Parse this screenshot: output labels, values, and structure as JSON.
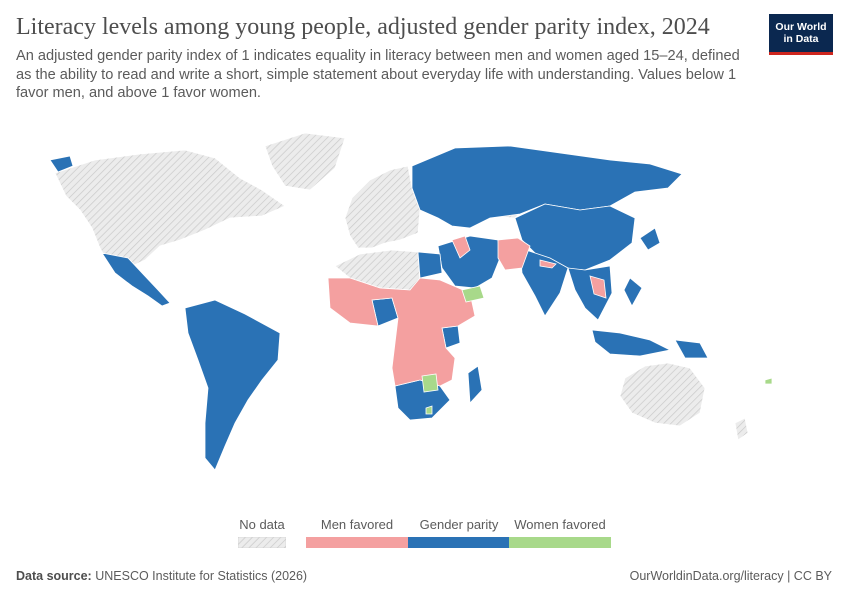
{
  "title": "Literacy levels among young people, adjusted gender parity index, 2024",
  "subtitle": "An adjusted gender parity index of 1 indicates equality in literacy between men and women aged 15–24, defined as the ability to read and write a short, simple statement about everyday life with understanding. Values below 1 favor men, and above 1 favor women.",
  "logo": {
    "line1": "Our World",
    "line2": "in Data"
  },
  "legend": {
    "items": [
      {
        "label": "No data",
        "key": "nodata"
      },
      {
        "label": "Men favored",
        "key": "men",
        "color": "#f4a0a0"
      },
      {
        "label": "Gender parity",
        "key": "parity",
        "color": "#2a72b5"
      },
      {
        "label": "Women favored",
        "key": "women",
        "color": "#a8d98a"
      }
    ]
  },
  "colors": {
    "nodata": "#e8e8e8",
    "men": "#f4a0a0",
    "parity": "#2a72b5",
    "women": "#a8d98a",
    "border": "#ffffff"
  },
  "map_regions": [
    {
      "region": "North America",
      "category": "nodata"
    },
    {
      "region": "Greenland",
      "category": "nodata"
    },
    {
      "region": "Europe",
      "category": "nodata"
    },
    {
      "region": "Australia",
      "category": "nodata"
    },
    {
      "region": "Mexico & Central America",
      "category": "parity"
    },
    {
      "region": "South America",
      "category": "parity"
    },
    {
      "region": "Russia & Central Asia",
      "category": "parity"
    },
    {
      "region": "China",
      "category": "parity"
    },
    {
      "region": "Middle East",
      "category": "parity"
    },
    {
      "region": "India",
      "category": "parity"
    },
    {
      "region": "Southeast Asia",
      "category": "parity"
    },
    {
      "region": "Indonesia",
      "category": "parity"
    },
    {
      "region": "Papua New Guinea",
      "category": "parity"
    },
    {
      "region": "Southern Africa",
      "category": "parity"
    },
    {
      "region": "Madagascar",
      "category": "parity"
    },
    {
      "region": "Egypt",
      "category": "parity"
    },
    {
      "region": "Nigeria",
      "category": "parity"
    },
    {
      "region": "West & Central Africa",
      "category": "men"
    },
    {
      "region": "Iraq",
      "category": "men"
    },
    {
      "region": "Afghanistan & Pakistan",
      "category": "men"
    },
    {
      "region": "Nepal",
      "category": "men"
    },
    {
      "region": "Laos",
      "category": "men"
    },
    {
      "region": "Yemen",
      "category": "women"
    },
    {
      "region": "Zimbabwe",
      "category": "women"
    }
  ],
  "footer": {
    "source_label": "Data source:",
    "source": "UNESCO Institute for Statistics (2026)",
    "url": "OurWorldinData.org/literacy | CC BY"
  }
}
